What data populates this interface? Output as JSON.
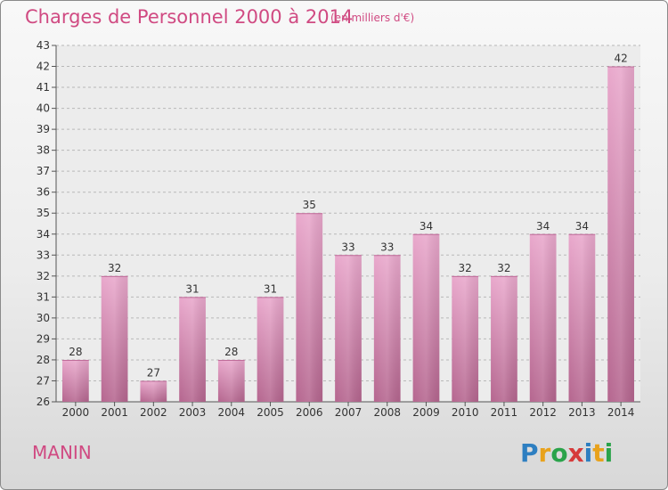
{
  "chart_data": {
    "type": "bar",
    "title": "Charges de Personnel 2000 à 2014",
    "subtitle": "(en milliers d'€)",
    "categories": [
      "2000",
      "2001",
      "2002",
      "2003",
      "2004",
      "2005",
      "2006",
      "2007",
      "2008",
      "2009",
      "2010",
      "2011",
      "2012",
      "2013",
      "2014"
    ],
    "values": [
      28,
      32,
      27,
      31,
      28,
      31,
      35,
      33,
      33,
      34,
      32,
      32,
      34,
      34,
      42
    ],
    "ylim": [
      26,
      43
    ],
    "yticks": [
      26,
      27,
      28,
      29,
      30,
      31,
      32,
      33,
      34,
      35,
      36,
      37,
      38,
      39,
      40,
      41,
      42,
      43
    ],
    "grid": true,
    "bar_color": "#d98ab5"
  },
  "footer": {
    "commune": "MANIN",
    "logo": "Proxiti"
  }
}
